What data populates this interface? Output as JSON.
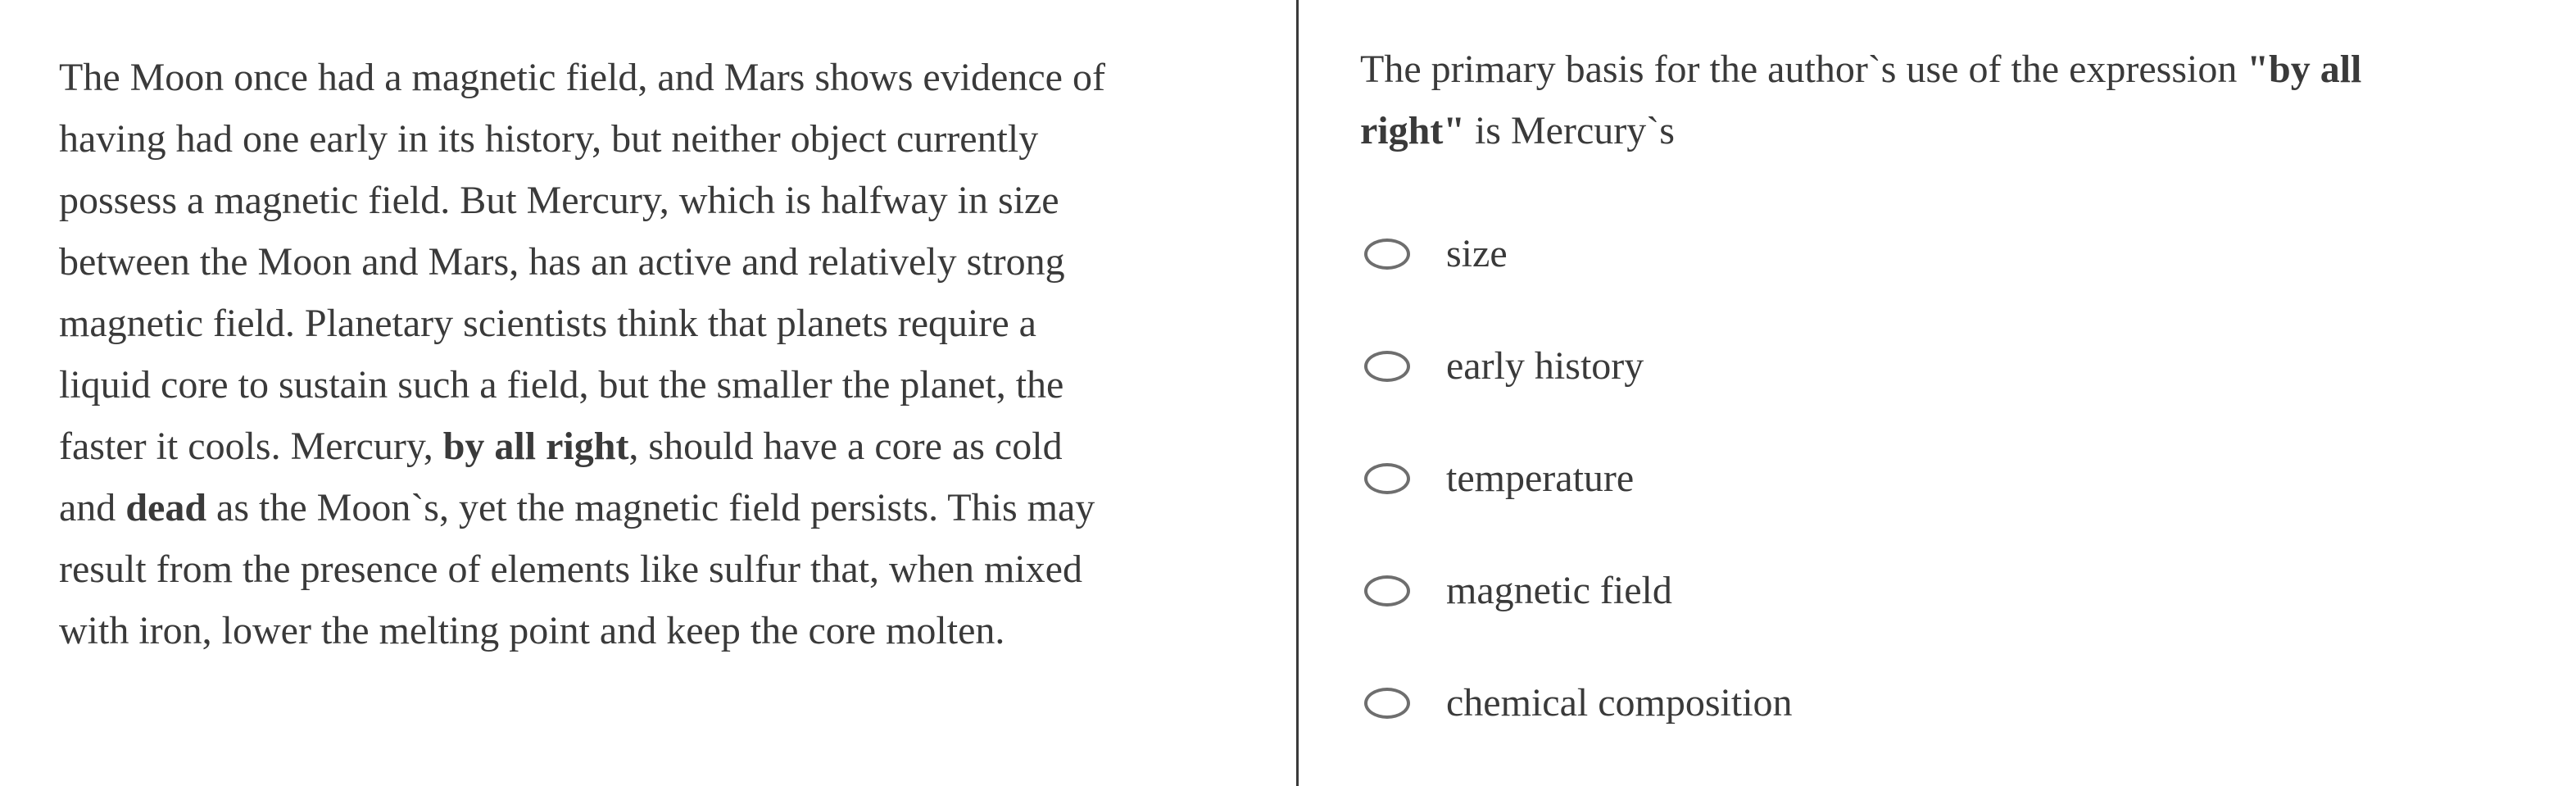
{
  "colors": {
    "text": "#3a3a3a",
    "divider": "#3a3a3a",
    "radio_border": "#6e6e6e",
    "background": "#ffffff"
  },
  "passage": {
    "lines": [
      [
        {
          "t": "The Moon once had a magnetic field, and Mars shows evidence of"
        }
      ],
      [
        {
          "t": "having had one early in its history, but neither object currently"
        }
      ],
      [
        {
          "t": "possess a magnetic field. But Mercury, which is halfway in size"
        }
      ],
      [
        {
          "t": "between the Moon and Mars, has an active and relatively strong"
        }
      ],
      [
        {
          "t": "magnetic field. Planetary scientists think that planets require a"
        }
      ],
      [
        {
          "t": "liquid core to sustain such a field, but the smaller the planet, the"
        }
      ],
      [
        {
          "t": "faster it cools. Mercury, "
        },
        {
          "t": "by all right",
          "b": true
        },
        {
          "t": ", should have a core as cold"
        }
      ],
      [
        {
          "t": "and "
        },
        {
          "t": "dead",
          "b": true
        },
        {
          "t": " as the Moon`s, yet the magnetic field persists. This may"
        }
      ],
      [
        {
          "t": "result from the presence of elements like sulfur that, when mixed"
        }
      ],
      [
        {
          "t": "with iron, lower the melting point and keep the core molten."
        }
      ]
    ]
  },
  "question": {
    "prompt_lines": [
      [
        {
          "t": "The primary basis for the author`s use of the expression "
        },
        {
          "t": "\"by all",
          "b": true
        }
      ],
      [
        {
          "t": "right\"",
          "b": true
        },
        {
          "t": " is Mercury`s"
        }
      ]
    ],
    "options": [
      {
        "label": "size",
        "selected": false
      },
      {
        "label": "early history",
        "selected": false
      },
      {
        "label": "temperature",
        "selected": false
      },
      {
        "label": "magnetic field",
        "selected": false
      },
      {
        "label": "chemical composition",
        "selected": false
      }
    ]
  }
}
